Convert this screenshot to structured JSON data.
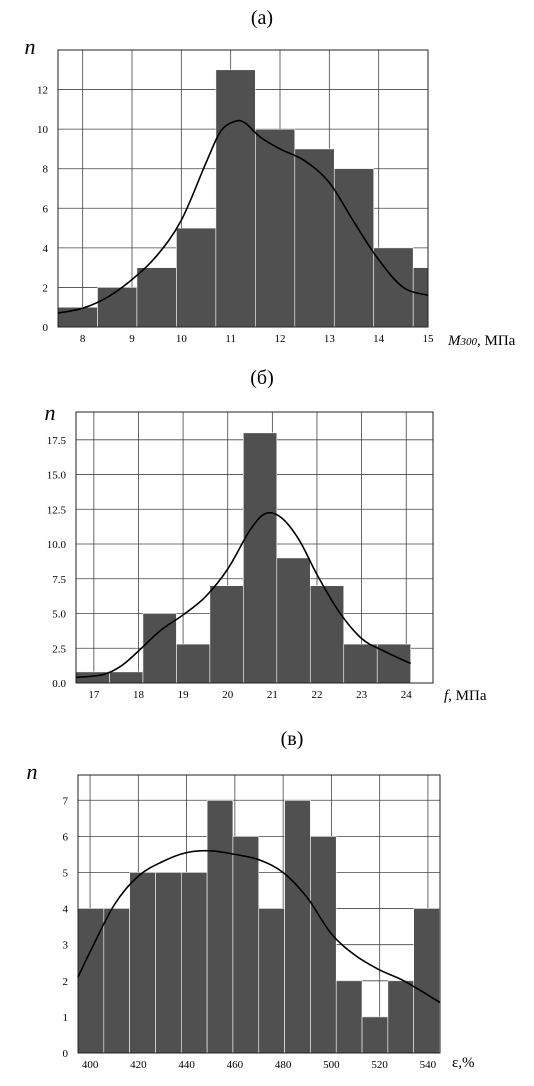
{
  "chart_data": [
    {
      "type": "bar",
      "panel_label": "(а)",
      "ylabel": "n",
      "xlabel_main": "M",
      "xlabel_sub": "300",
      "xlabel_unit": ", МПа",
      "xlim": [
        7.5,
        15
      ],
      "ylim": [
        0,
        14
      ],
      "xticks": [
        "8",
        "9",
        "10",
        "11",
        "12",
        "13",
        "14",
        "15"
      ],
      "yticks": [
        "0",
        "2",
        "4",
        "6",
        "8",
        "10",
        "12"
      ],
      "bins": [
        {
          "x0": 7.5,
          "x1": 8.3,
          "value": 1
        },
        {
          "x0": 8.3,
          "x1": 9.1,
          "value": 2
        },
        {
          "x0": 9.1,
          "x1": 9.9,
          "value": 3
        },
        {
          "x0": 9.9,
          "x1": 10.7,
          "value": 5
        },
        {
          "x0": 10.7,
          "x1": 11.5,
          "value": 13
        },
        {
          "x0": 11.5,
          "x1": 12.3,
          "value": 10
        },
        {
          "x0": 12.3,
          "x1": 13.1,
          "value": 9
        },
        {
          "x0": 13.1,
          "x1": 13.9,
          "value": 8
        },
        {
          "x0": 13.9,
          "x1": 14.7,
          "value": 4
        },
        {
          "x0": 14.7,
          "x1": 15.5,
          "value": 3
        }
      ],
      "curve": [
        [
          7.5,
          0.7
        ],
        [
          8.0,
          0.95
        ],
        [
          8.5,
          1.5
        ],
        [
          9.0,
          2.4
        ],
        [
          9.5,
          3.6
        ],
        [
          10.0,
          5.4
        ],
        [
          10.5,
          8.3
        ],
        [
          10.8,
          9.9
        ],
        [
          11.1,
          10.4
        ],
        [
          11.3,
          10.3
        ],
        [
          11.6,
          9.6
        ],
        [
          12.0,
          9.0
        ],
        [
          12.5,
          8.4
        ],
        [
          13.0,
          7.3
        ],
        [
          13.5,
          5.3
        ],
        [
          14.0,
          3.4
        ],
        [
          14.5,
          2.0
        ],
        [
          15.5,
          1.6
        ]
      ]
    },
    {
      "type": "bar",
      "panel_label": "(б)",
      "ylabel": "n",
      "xlabel_main": "f",
      "xlabel_unit": ", МПа",
      "xlim": [
        16.6,
        24.6
      ],
      "ylim": [
        0,
        19.5
      ],
      "xticks": [
        "17",
        "18",
        "19",
        "20",
        "21",
        "22",
        "23",
        "24"
      ],
      "yticks": [
        "0.0",
        "2.5",
        "5.0",
        "7.5",
        "10.0",
        "12.5",
        "15.0",
        "17.5"
      ],
      "bins": [
        {
          "x0": 16.6,
          "x1": 17.35,
          "value": 0.8
        },
        {
          "x0": 17.35,
          "x1": 18.1,
          "value": 0.8
        },
        {
          "x0": 18.1,
          "x1": 18.85,
          "value": 5
        },
        {
          "x0": 18.85,
          "x1": 19.6,
          "value": 2.8
        },
        {
          "x0": 19.6,
          "x1": 20.35,
          "value": 7
        },
        {
          "x0": 20.35,
          "x1": 21.1,
          "value": 18
        },
        {
          "x0": 21.1,
          "x1": 21.85,
          "value": 9
        },
        {
          "x0": 21.85,
          "x1": 22.6,
          "value": 7
        },
        {
          "x0": 22.6,
          "x1": 23.35,
          "value": 2.8
        },
        {
          "x0": 23.35,
          "x1": 24.1,
          "value": 2.8
        }
      ],
      "curve": [
        [
          16.6,
          0.4
        ],
        [
          17.2,
          0.6
        ],
        [
          17.6,
          1.2
        ],
        [
          18.0,
          2.3
        ],
        [
          18.5,
          3.8
        ],
        [
          19.0,
          4.9
        ],
        [
          19.5,
          6.2
        ],
        [
          20.0,
          8.2
        ],
        [
          20.5,
          11.0
        ],
        [
          20.85,
          12.2
        ],
        [
          21.2,
          11.9
        ],
        [
          21.6,
          10.3
        ],
        [
          22.0,
          7.8
        ],
        [
          22.5,
          5.1
        ],
        [
          23.0,
          3.2
        ],
        [
          23.5,
          2.3
        ],
        [
          24.1,
          1.4
        ]
      ]
    },
    {
      "type": "bar",
      "panel_label": "(в)",
      "ylabel": "n",
      "xlabel_main": "ε,%",
      "xlim": [
        395,
        545
      ],
      "ylim": [
        0,
        7.7
      ],
      "xticks": [
        "400",
        "420",
        "440",
        "460",
        "480",
        "500",
        "520",
        "540"
      ],
      "yticks": [
        "0",
        "1",
        "2",
        "3",
        "4",
        "5",
        "6",
        "7"
      ],
      "bins": [
        {
          "x0": 395,
          "x1": 405.7,
          "value": 4
        },
        {
          "x0": 405.7,
          "x1": 416.4,
          "value": 4
        },
        {
          "x0": 416.4,
          "x1": 427.1,
          "value": 5
        },
        {
          "x0": 427.1,
          "x1": 437.8,
          "value": 5
        },
        {
          "x0": 437.8,
          "x1": 448.5,
          "value": 5
        },
        {
          "x0": 448.5,
          "x1": 459.2,
          "value": 7
        },
        {
          "x0": 459.2,
          "x1": 469.9,
          "value": 6
        },
        {
          "x0": 469.9,
          "x1": 480.6,
          "value": 4
        },
        {
          "x0": 480.6,
          "x1": 491.3,
          "value": 7
        },
        {
          "x0": 491.3,
          "x1": 502,
          "value": 6
        },
        {
          "x0": 502,
          "x1": 512.7,
          "value": 2
        },
        {
          "x0": 512.7,
          "x1": 523.4,
          "value": 1
        },
        {
          "x0": 523.4,
          "x1": 534.1,
          "value": 2
        },
        {
          "x0": 534.1,
          "x1": 544.8,
          "value": 4
        }
      ],
      "curve": [
        [
          395,
          2.1
        ],
        [
          400,
          2.8
        ],
        [
          410,
          4.1
        ],
        [
          420,
          4.9
        ],
        [
          430,
          5.3
        ],
        [
          440,
          5.55
        ],
        [
          450,
          5.6
        ],
        [
          460,
          5.5
        ],
        [
          470,
          5.35
        ],
        [
          480,
          5.0
        ],
        [
          490,
          4.3
        ],
        [
          500,
          3.3
        ],
        [
          510,
          2.7
        ],
        [
          520,
          2.3
        ],
        [
          530,
          2.0
        ],
        [
          545,
          1.4
        ]
      ]
    }
  ]
}
